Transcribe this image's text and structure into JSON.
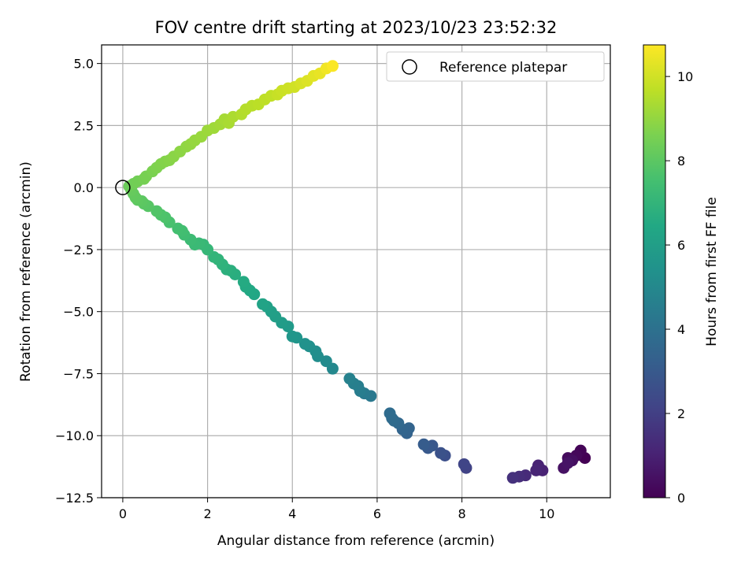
{
  "chart_data": {
    "type": "scatter",
    "title": "FOV centre drift starting at 2023/10/23 23:52:32",
    "xlabel": "Angular distance from reference (arcmin)",
    "ylabel": "Rotation from reference (arcmin)",
    "xlim": [
      -0.5,
      11.5
    ],
    "ylim": [
      -12.5,
      5.75
    ],
    "xticks": [
      0,
      2,
      4,
      6,
      8,
      10
    ],
    "xtick_labels": [
      "0",
      "2",
      "4",
      "6",
      "8",
      "10"
    ],
    "yticks": [
      5.0,
      2.5,
      0.0,
      -2.5,
      -5.0,
      -7.5,
      -10.0,
      -12.5
    ],
    "ytick_labels": [
      "5.0",
      "2.5",
      "0.0",
      "−2.5",
      "−5.0",
      "−7.5",
      "−10.0",
      "−12.5"
    ],
    "grid": true,
    "legend": {
      "position": "top-right",
      "entries": [
        "Reference platepar"
      ]
    },
    "reference_point": {
      "x": 0,
      "y": 0,
      "marker": "open-circle"
    },
    "colorbar": {
      "label": "Hours from first FF file",
      "range": [
        0,
        10.75
      ],
      "ticks": [
        0,
        2,
        4,
        6,
        8,
        10
      ],
      "tick_labels": [
        "0",
        "2",
        "4",
        "6",
        "8",
        "10"
      ],
      "colormap": "viridis"
    },
    "points": [
      {
        "x": 10.9,
        "y": -10.9,
        "c": 0.0
      },
      {
        "x": 10.8,
        "y": -10.6,
        "c": 0.1
      },
      {
        "x": 10.7,
        "y": -10.8,
        "c": 0.2
      },
      {
        "x": 10.5,
        "y": -10.9,
        "c": 0.3
      },
      {
        "x": 10.6,
        "y": -11.0,
        "c": 0.4
      },
      {
        "x": 10.4,
        "y": -11.3,
        "c": 0.5
      },
      {
        "x": 10.5,
        "y": -11.1,
        "c": 0.55
      },
      {
        "x": 9.9,
        "y": -11.4,
        "c": 1.0
      },
      {
        "x": 9.8,
        "y": -11.2,
        "c": 1.05
      },
      {
        "x": 9.75,
        "y": -11.4,
        "c": 1.1
      },
      {
        "x": 9.5,
        "y": -11.6,
        "c": 1.3
      },
      {
        "x": 9.35,
        "y": -11.65,
        "c": 1.4
      },
      {
        "x": 9.2,
        "y": -11.7,
        "c": 1.5
      },
      {
        "x": 8.1,
        "y": -11.3,
        "c": 2.1
      },
      {
        "x": 8.05,
        "y": -11.15,
        "c": 2.2
      },
      {
        "x": 7.6,
        "y": -10.8,
        "c": 2.6
      },
      {
        "x": 7.5,
        "y": -10.7,
        "c": 2.7
      },
      {
        "x": 7.3,
        "y": -10.4,
        "c": 2.9
      },
      {
        "x": 7.2,
        "y": -10.5,
        "c": 3.0
      },
      {
        "x": 7.1,
        "y": -10.35,
        "c": 3.1
      },
      {
        "x": 6.7,
        "y": -9.9,
        "c": 3.4
      },
      {
        "x": 6.75,
        "y": -9.7,
        "c": 3.45
      },
      {
        "x": 6.6,
        "y": -9.75,
        "c": 3.5
      },
      {
        "x": 6.5,
        "y": -9.5,
        "c": 3.6
      },
      {
        "x": 6.4,
        "y": -9.4,
        "c": 3.7
      },
      {
        "x": 6.35,
        "y": -9.3,
        "c": 3.75
      },
      {
        "x": 6.3,
        "y": -9.1,
        "c": 3.8
      },
      {
        "x": 5.85,
        "y": -8.4,
        "c": 4.3
      },
      {
        "x": 5.7,
        "y": -8.3,
        "c": 4.4
      },
      {
        "x": 5.6,
        "y": -8.2,
        "c": 4.5
      },
      {
        "x": 5.55,
        "y": -8.0,
        "c": 4.55
      },
      {
        "x": 5.45,
        "y": -7.9,
        "c": 4.6
      },
      {
        "x": 5.35,
        "y": -7.7,
        "c": 4.7
      },
      {
        "x": 4.95,
        "y": -7.3,
        "c": 5.0
      },
      {
        "x": 4.8,
        "y": -7.0,
        "c": 5.1
      },
      {
        "x": 4.6,
        "y": -6.8,
        "c": 5.2
      },
      {
        "x": 4.55,
        "y": -6.6,
        "c": 5.25
      },
      {
        "x": 4.4,
        "y": -6.4,
        "c": 5.35
      },
      {
        "x": 4.3,
        "y": -6.3,
        "c": 5.4
      },
      {
        "x": 4.1,
        "y": -6.05,
        "c": 5.55
      },
      {
        "x": 4.0,
        "y": -6.0,
        "c": 5.6
      },
      {
        "x": 3.9,
        "y": -5.6,
        "c": 5.8
      },
      {
        "x": 3.75,
        "y": -5.45,
        "c": 5.9
      },
      {
        "x": 3.6,
        "y": -5.2,
        "c": 6.0
      },
      {
        "x": 3.5,
        "y": -5.0,
        "c": 6.05
      },
      {
        "x": 3.4,
        "y": -4.8,
        "c": 6.1
      },
      {
        "x": 3.3,
        "y": -4.7,
        "c": 6.2
      },
      {
        "x": 3.1,
        "y": -4.3,
        "c": 6.35
      },
      {
        "x": 3.0,
        "y": -4.15,
        "c": 6.45
      },
      {
        "x": 2.9,
        "y": -4.0,
        "c": 6.5
      },
      {
        "x": 2.85,
        "y": -3.8,
        "c": 6.55
      },
      {
        "x": 2.65,
        "y": -3.5,
        "c": 6.7
      },
      {
        "x": 2.55,
        "y": -3.35,
        "c": 6.75
      },
      {
        "x": 2.45,
        "y": -3.3,
        "c": 6.8
      },
      {
        "x": 2.35,
        "y": -3.1,
        "c": 6.9
      },
      {
        "x": 2.25,
        "y": -2.9,
        "c": 6.95
      },
      {
        "x": 2.15,
        "y": -2.8,
        "c": 7.0
      },
      {
        "x": 2.0,
        "y": -2.5,
        "c": 7.1
      },
      {
        "x": 1.9,
        "y": -2.3,
        "c": 7.15
      },
      {
        "x": 1.8,
        "y": -2.25,
        "c": 7.2
      },
      {
        "x": 1.7,
        "y": -2.3,
        "c": 7.25
      },
      {
        "x": 1.6,
        "y": -2.1,
        "c": 7.3
      },
      {
        "x": 1.45,
        "y": -1.9,
        "c": 7.4
      },
      {
        "x": 1.4,
        "y": -1.75,
        "c": 7.45
      },
      {
        "x": 1.3,
        "y": -1.65,
        "c": 7.5
      },
      {
        "x": 1.1,
        "y": -1.4,
        "c": 7.6
      },
      {
        "x": 1.0,
        "y": -1.2,
        "c": 7.7
      },
      {
        "x": 0.9,
        "y": -1.1,
        "c": 7.75
      },
      {
        "x": 0.8,
        "y": -0.95,
        "c": 7.8
      },
      {
        "x": 0.6,
        "y": -0.75,
        "c": 7.9
      },
      {
        "x": 0.5,
        "y": -0.65,
        "c": 7.95
      },
      {
        "x": 0.45,
        "y": -0.55,
        "c": 8.0
      },
      {
        "x": 0.35,
        "y": -0.5,
        "c": 8.05
      },
      {
        "x": 0.3,
        "y": -0.4,
        "c": 8.1
      },
      {
        "x": 0.25,
        "y": -0.25,
        "c": 8.15
      },
      {
        "x": 0.2,
        "y": -0.1,
        "c": 8.2
      },
      {
        "x": 0.15,
        "y": 0.05,
        "c": 8.3
      },
      {
        "x": 0.25,
        "y": 0.15,
        "c": 8.4
      },
      {
        "x": 0.35,
        "y": 0.25,
        "c": 8.45
      },
      {
        "x": 0.5,
        "y": 0.35,
        "c": 8.5
      },
      {
        "x": 0.55,
        "y": 0.45,
        "c": 8.55
      },
      {
        "x": 0.7,
        "y": 0.65,
        "c": 8.6
      },
      {
        "x": 0.8,
        "y": 0.8,
        "c": 8.65
      },
      {
        "x": 0.9,
        "y": 0.95,
        "c": 8.7
      },
      {
        "x": 1.0,
        "y": 1.05,
        "c": 8.75
      },
      {
        "x": 1.1,
        "y": 1.1,
        "c": 8.8
      },
      {
        "x": 1.2,
        "y": 1.25,
        "c": 8.85
      },
      {
        "x": 1.35,
        "y": 1.45,
        "c": 8.9
      },
      {
        "x": 1.5,
        "y": 1.65,
        "c": 8.95
      },
      {
        "x": 1.6,
        "y": 1.75,
        "c": 9.0
      },
      {
        "x": 1.7,
        "y": 1.9,
        "c": 9.05
      },
      {
        "x": 1.85,
        "y": 2.05,
        "c": 9.1
      },
      {
        "x": 2.0,
        "y": 2.3,
        "c": 9.15
      },
      {
        "x": 2.15,
        "y": 2.4,
        "c": 9.2
      },
      {
        "x": 2.3,
        "y": 2.55,
        "c": 9.25
      },
      {
        "x": 2.4,
        "y": 2.75,
        "c": 9.3
      },
      {
        "x": 2.5,
        "y": 2.6,
        "c": 9.35
      },
      {
        "x": 2.6,
        "y": 2.85,
        "c": 9.4
      },
      {
        "x": 2.8,
        "y": 2.95,
        "c": 9.5
      },
      {
        "x": 2.9,
        "y": 3.15,
        "c": 9.55
      },
      {
        "x": 3.05,
        "y": 3.3,
        "c": 9.6
      },
      {
        "x": 3.2,
        "y": 3.35,
        "c": 9.65
      },
      {
        "x": 3.35,
        "y": 3.55,
        "c": 9.7
      },
      {
        "x": 3.5,
        "y": 3.7,
        "c": 9.75
      },
      {
        "x": 3.65,
        "y": 3.75,
        "c": 9.85
      },
      {
        "x": 3.75,
        "y": 3.9,
        "c": 9.9
      },
      {
        "x": 3.9,
        "y": 4.0,
        "c": 9.95
      },
      {
        "x": 4.05,
        "y": 4.05,
        "c": 10.0
      },
      {
        "x": 4.2,
        "y": 4.2,
        "c": 10.1
      },
      {
        "x": 4.35,
        "y": 4.3,
        "c": 10.2
      },
      {
        "x": 4.5,
        "y": 4.5,
        "c": 10.3
      },
      {
        "x": 4.65,
        "y": 4.6,
        "c": 10.4
      },
      {
        "x": 4.8,
        "y": 4.8,
        "c": 10.55
      },
      {
        "x": 4.95,
        "y": 4.9,
        "c": 10.7
      }
    ]
  }
}
